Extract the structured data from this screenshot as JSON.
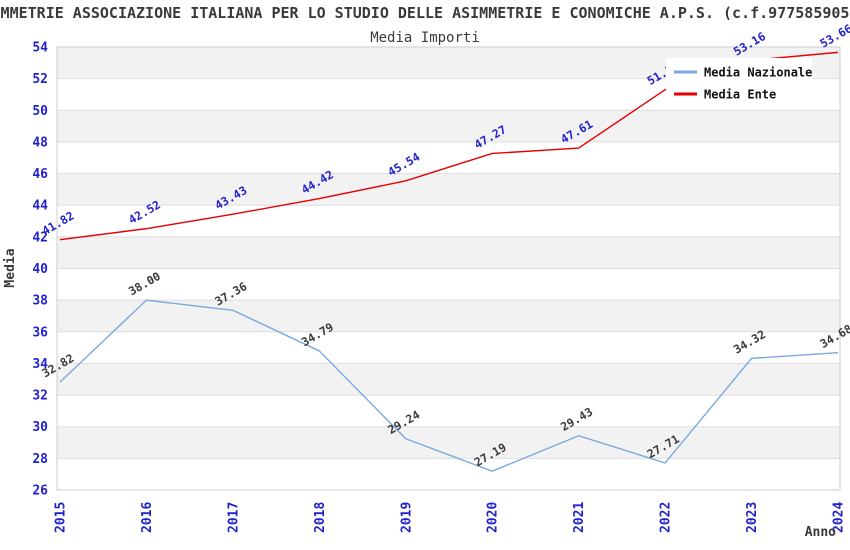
{
  "header": {
    "title": "MMETRIE ASSOCIAZIONE ITALIANA PER LO STUDIO DELLE ASIMMETRIE E CONOMICHE A.P.S. (c.f.977585905",
    "subtitle": "Media Importi"
  },
  "colors": {
    "tick_blue": "#2222cc",
    "dark_text": "#3a3a3a",
    "band_gray": "#f2f2f2",
    "gridline": "#dddddd",
    "plot_border": "#cccccc",
    "legend_bg": "#ffffff",
    "nazionale_line": "#7aa9e0",
    "ente_line": "#e60000"
  },
  "legend": {
    "items": [
      {
        "label": "Media Nazionale"
      },
      {
        "label": "Media Ente"
      }
    ]
  },
  "chart_data": {
    "type": "line",
    "title": "Media Importi",
    "xlabel": "Anno",
    "ylabel": "Media",
    "x": [
      2015,
      2016,
      2017,
      2018,
      2019,
      2020,
      2021,
      2022,
      2023,
      2024
    ],
    "ylim": [
      26,
      54
    ],
    "ytick_step": 2,
    "grid": true,
    "legend_position": "upper right",
    "series": [
      {
        "name": "Media Nazionale",
        "color": "#7aa9e0",
        "label_color": "#3a3a3a",
        "values": [
          32.82,
          38.0,
          37.36,
          34.79,
          29.24,
          27.19,
          29.43,
          27.71,
          34.32,
          34.68
        ]
      },
      {
        "name": "Media Ente",
        "color": "#e60000",
        "label_color": "#2222cc",
        "values": [
          41.82,
          42.52,
          43.43,
          44.42,
          45.54,
          47.27,
          47.61,
          51.3,
          53.16,
          53.66
        ]
      }
    ]
  }
}
